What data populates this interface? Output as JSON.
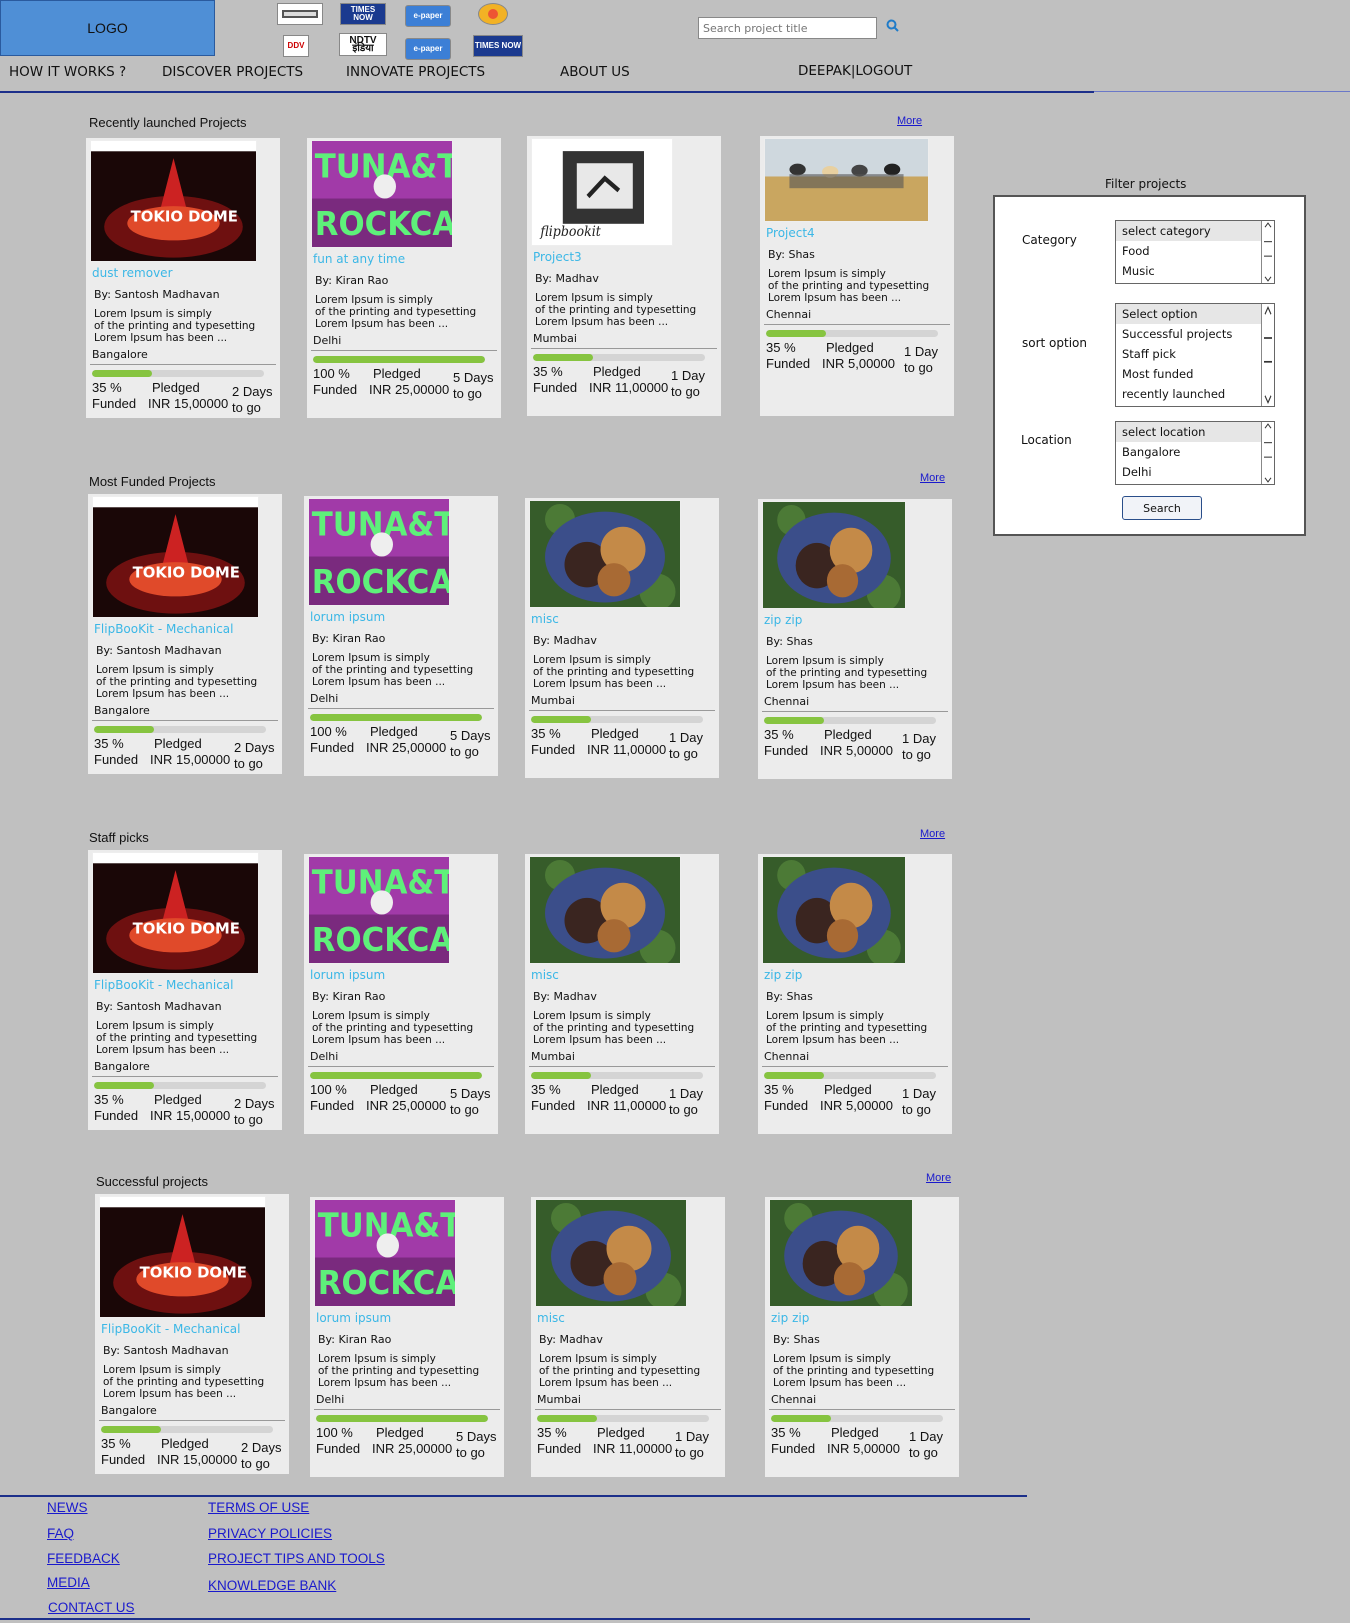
{
  "header": {
    "logo_text": "LOGO",
    "publisher_logos": [
      "TIMES NOW",
      "e-paper",
      "DDV",
      "NDTV इंडिया",
      "e-paper",
      "TIMES NOW"
    ],
    "search_placeholder": "Search project title"
  },
  "nav": {
    "items": [
      "HOW IT WORKS ?",
      "DISCOVER PROJECTS",
      "INNOVATE PROJECTS",
      "ABOUT US"
    ],
    "user": "DEEPAK|LOGOUT"
  },
  "sections": [
    {
      "title": "Recently launched Projects",
      "more": "More",
      "cards": [
        {
          "title": "dust remover",
          "by": "By:  Santosh Madhavan",
          "desc": [
            "Lorem Ipsum is simply",
            "of the printing and typesetting",
            "Lorem Ipsum has been ..."
          ],
          "location": "Bangalore",
          "progress": 0.35,
          "funded": "35 %",
          "funded_label": "Funded",
          "pledged_label": "Pledged",
          "pledged": "INR 15,00000",
          "days": "2 Days",
          "days_label": "to go",
          "image": "tokio-dome"
        },
        {
          "title": "fun at any time",
          "by": "By:  Kiran Rao",
          "desc": [
            "Lorem Ipsum is simply",
            "of the printing and typesetting",
            "Lorem Ipsum has been ..."
          ],
          "location": "Delhi",
          "progress": 1.0,
          "funded": "100 %",
          "funded_label": "Funded",
          "pledged_label": "Pledged",
          "pledged": "INR 25,00000",
          "days": "5 Days",
          "days_label": "to go",
          "image": "tuna-the-rock-cat"
        },
        {
          "title": "Project3",
          "by": "By:  Madhav",
          "desc": [
            "Lorem Ipsum is simply",
            "of the printing and typesetting",
            "Lorem Ipsum has been ..."
          ],
          "location": "Mumbai",
          "progress": 0.35,
          "funded": "35 %",
          "funded_label": "Funded",
          "pledged_label": "Pledged",
          "pledged": "INR 11,00000",
          "days": "1 Day",
          "days_label": "to go",
          "image": "flipbookit"
        },
        {
          "title": "Project4",
          "by": "By:  Shas",
          "desc": [
            "Lorem Ipsum is simply",
            "of the printing and typesetting",
            "Lorem Ipsum has been ..."
          ],
          "location": "Chennai",
          "progress": 0.35,
          "funded": "35 %",
          "funded_label": "Funded",
          "pledged_label": "Pledged",
          "pledged": "INR 5,00000",
          "days": "1 Day",
          "days_label": "to go",
          "image": "band-in-field"
        }
      ]
    },
    {
      "title": "Most Funded Projects",
      "more": "More",
      "cards": [
        {
          "title": "FlipBooKit - Mechanical",
          "by": "By:  Santosh Madhavan",
          "desc": [
            "Lorem Ipsum is simply",
            "of the printing and typesetting",
            "Lorem Ipsum has been ..."
          ],
          "location": "Bangalore",
          "progress": 0.35,
          "funded": "35 %",
          "funded_label": "Funded",
          "pledged_label": "Pledged",
          "pledged": "INR 15,00000",
          "days": "2 Days",
          "days_label": "to go",
          "image": "tokio-dome"
        },
        {
          "title": "lorum ipsum",
          "by": "By:  Kiran Rao",
          "desc": [
            "Lorem Ipsum is simply",
            "of the printing and typesetting",
            "Lorem Ipsum has been ..."
          ],
          "location": "Delhi",
          "progress": 1.0,
          "funded": "100 %",
          "funded_label": "Funded",
          "pledged_label": "Pledged",
          "pledged": "INR 25,00000",
          "days": "5 Days",
          "days_label": "to go",
          "image": "tuna-the-rock-cat"
        },
        {
          "title": "misc",
          "by": "By:  Madhav",
          "desc": [
            "Lorem Ipsum is simply",
            "of the printing and typesetting",
            "Lorem Ipsum has been ..."
          ],
          "location": "Mumbai",
          "progress": 0.35,
          "funded": "35 %",
          "funded_label": "Funded",
          "pledged_label": "Pledged",
          "pledged": "INR 11,00000",
          "days": "1 Day",
          "days_label": "to go",
          "image": "cookies"
        },
        {
          "title": "zip zip",
          "by": "By:  Shas",
          "desc": [
            "Lorem Ipsum is simply",
            "of the printing and typesetting",
            "Lorem Ipsum has been ..."
          ],
          "location": "Chennai",
          "progress": 0.35,
          "funded": "35 %",
          "funded_label": "Funded",
          "pledged_label": "Pledged",
          "pledged": "INR 5,00000",
          "days": "1 Day",
          "days_label": "to go",
          "image": "cookies"
        }
      ]
    },
    {
      "title": "Staff picks",
      "more": "More",
      "cards": [
        {
          "title": "FlipBooKit - Mechanical",
          "by": "By:  Santosh Madhavan",
          "desc": [
            "Lorem Ipsum is simply",
            "of the printing and typesetting",
            "Lorem Ipsum has been ..."
          ],
          "location": "Bangalore",
          "progress": 0.35,
          "funded": "35 %",
          "funded_label": "Funded",
          "pledged_label": "Pledged",
          "pledged": "INR 15,00000",
          "days": "2 Days",
          "days_label": "to go",
          "image": "tokio-dome"
        },
        {
          "title": "lorum ipsum",
          "by": "By:  Kiran Rao",
          "desc": [
            "Lorem Ipsum is simply",
            "of the printing and typesetting",
            "Lorem Ipsum has been ..."
          ],
          "location": "Delhi",
          "progress": 1.0,
          "funded": "100 %",
          "funded_label": "Funded",
          "pledged_label": "Pledged",
          "pledged": "INR 25,00000",
          "days": "5 Days",
          "days_label": "to go",
          "image": "tuna-the-rock-cat"
        },
        {
          "title": "misc",
          "by": "By:  Madhav",
          "desc": [
            "Lorem Ipsum is simply",
            "of the printing and typesetting",
            "Lorem Ipsum has been ..."
          ],
          "location": "Mumbai",
          "progress": 0.35,
          "funded": "35 %",
          "funded_label": "Funded",
          "pledged_label": "Pledged",
          "pledged": "INR 11,00000",
          "days": "1 Day",
          "days_label": "to go",
          "image": "cookies"
        },
        {
          "title": "zip zip",
          "by": "By:  Shas",
          "desc": [
            "Lorem Ipsum is simply",
            "of the printing and typesetting",
            "Lorem Ipsum has been ..."
          ],
          "location": "Chennai",
          "progress": 0.35,
          "funded": "35 %",
          "funded_label": "Funded",
          "pledged_label": "Pledged",
          "pledged": "INR 5,00000",
          "days": "1 Day",
          "days_label": "to go",
          "image": "cookies"
        }
      ]
    },
    {
      "title": "Successful projects",
      "more": "More",
      "cards": [
        {
          "title": "FlipBooKit - Mechanical",
          "by": "By:  Santosh Madhavan",
          "desc": [
            "Lorem Ipsum is simply",
            "of the printing and typesetting",
            "Lorem Ipsum has been ..."
          ],
          "location": "Bangalore",
          "progress": 0.35,
          "funded": "35 %",
          "funded_label": "Funded",
          "pledged_label": "Pledged",
          "pledged": "INR 15,00000",
          "days": "2 Days",
          "days_label": "to go",
          "image": "tokio-dome"
        },
        {
          "title": "lorum ipsum",
          "by": "By:  Kiran Rao",
          "desc": [
            "Lorem Ipsum is simply",
            "of the printing and typesetting",
            "Lorem Ipsum has been ..."
          ],
          "location": "Delhi",
          "progress": 1.0,
          "funded": "100 %",
          "funded_label": "Funded",
          "pledged_label": "Pledged",
          "pledged": "INR 25,00000",
          "days": "5 Days",
          "days_label": "to go",
          "image": "tuna-the-rock-cat"
        },
        {
          "title": "misc",
          "by": "By:  Madhav",
          "desc": [
            "Lorem Ipsum is simply",
            "of the printing and typesetting",
            "Lorem Ipsum has been ..."
          ],
          "location": "Mumbai",
          "progress": 0.35,
          "funded": "35 %",
          "funded_label": "Funded",
          "pledged_label": "Pledged",
          "pledged": "INR 11,00000",
          "days": "1 Day",
          "days_label": "to go",
          "image": "cookies"
        },
        {
          "title": "zip zip",
          "by": "By:  Shas",
          "desc": [
            "Lorem Ipsum is simply",
            "of the printing and typesetting",
            "Lorem Ipsum has been ..."
          ],
          "location": "Chennai",
          "progress": 0.35,
          "funded": "35 %",
          "funded_label": "Funded",
          "pledged_label": "Pledged",
          "pledged": "INR 5,00000",
          "days": "1 Day",
          "days_label": "to go",
          "image": "cookies"
        }
      ]
    }
  ],
  "filter": {
    "title": "Filter projects",
    "category_label": "Category",
    "category_options": [
      "select category",
      "Food",
      "Music"
    ],
    "sort_label": "sort option",
    "sort_options": [
      "Select option",
      "Successful projects",
      "Staff pick",
      "Most funded",
      "recently launched"
    ],
    "location_label": "Location",
    "location_options": [
      "select location",
      "Bangalore",
      "Delhi"
    ],
    "search_button": "Search"
  },
  "footer": {
    "col1": [
      "NEWS",
      "FAQ",
      "FEEDBACK",
      "MEDIA",
      "CONTACT US"
    ],
    "col2": [
      "TERMS OF USE",
      "PRIVACY POLICIES",
      "PROJECT TIPS AND TOOLS",
      "KNOWLEDGE BANK"
    ]
  },
  "colors": {
    "background": "#c0c0c0",
    "accent": "#1c2f8a",
    "title_blue": "#3bb7e6",
    "progress_green": "#86c440"
  }
}
